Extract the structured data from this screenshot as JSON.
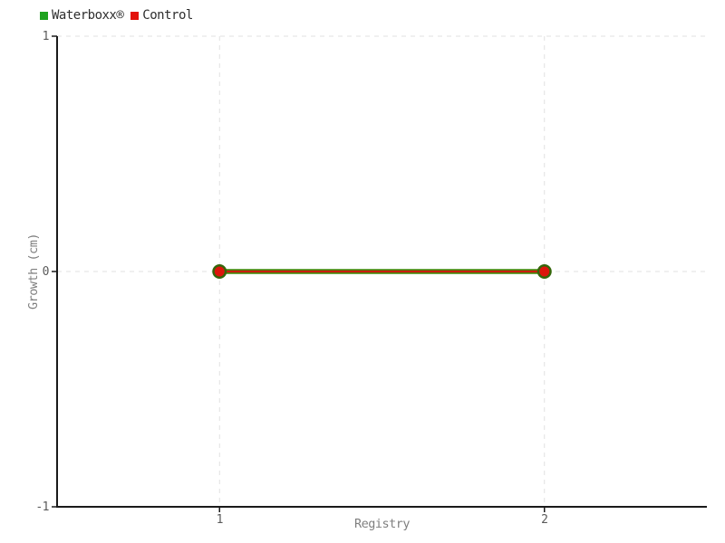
{
  "legend": {
    "items": [
      {
        "label": "Waterboxx®",
        "color": "#1ea21e"
      },
      {
        "label": "Control",
        "color": "#e3120b"
      }
    ]
  },
  "chart_data": {
    "type": "line",
    "title": "",
    "xlabel": "Registry",
    "ylabel": "Growth (cm)",
    "x": [
      1,
      2
    ],
    "series": [
      {
        "name": "Waterboxx®",
        "values": [
          0,
          0
        ],
        "color": "#1ea21e",
        "line_color": "#3f8a0a",
        "marker_color": "#35660a",
        "line_width": 5.5,
        "marker_radius": 8
      },
      {
        "name": "Control",
        "values": [
          0,
          0
        ],
        "color": "#e3120b",
        "line_color": "#cb1d0e",
        "marker_color": "#dd150c",
        "line_width": 2.2,
        "marker_radius": 5.5
      }
    ],
    "xlim": [
      0.5,
      2.5
    ],
    "ylim": [
      -1,
      1
    ],
    "x_ticks": [
      1,
      2
    ],
    "y_ticks": [
      1,
      0,
      -1
    ],
    "grid": true,
    "grid_style": "dashed",
    "grid_color": "#e1e1e1",
    "axis_color": "#1a1a1a",
    "tick_label_color": "#5a5a5a",
    "axis_title_color": "#7f7f7f",
    "legend_position": "top-left"
  }
}
